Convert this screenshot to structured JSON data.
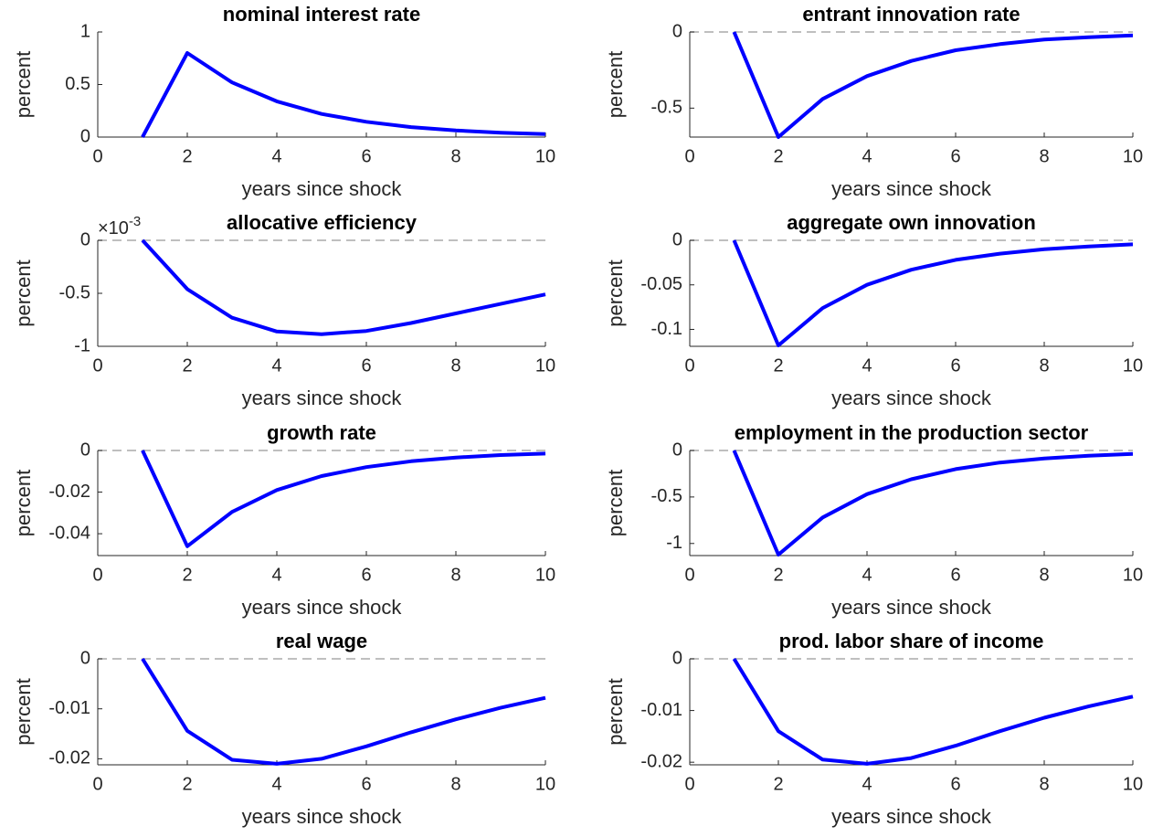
{
  "chart_data": [
    {
      "type": "line",
      "title": "nominal interest rate",
      "xlabel": "years since shock",
      "ylabel": "percent",
      "color": "#0000ff",
      "x": [
        1,
        2,
        3,
        4,
        5,
        6,
        7,
        8,
        9,
        10
      ],
      "values": [
        0,
        0.8,
        0.52,
        0.34,
        0.22,
        0.145,
        0.095,
        0.063,
        0.042,
        0.028
      ],
      "xlim": [
        0,
        10
      ],
      "xticks": [
        0,
        2,
        4,
        6,
        8,
        10
      ],
      "ylim": [
        0,
        1
      ],
      "yticks": [
        0,
        0.5,
        1
      ],
      "zero_line": false
    },
    {
      "type": "line",
      "title": "entrant innovation rate",
      "xlabel": "years since shock",
      "ylabel": "percent",
      "color": "#0000ff",
      "x": [
        1,
        2,
        3,
        4,
        5,
        6,
        7,
        8,
        9,
        10
      ],
      "values": [
        0,
        -0.69,
        -0.44,
        -0.29,
        -0.19,
        -0.12,
        -0.08,
        -0.05,
        -0.035,
        -0.022
      ],
      "xlim": [
        0,
        10
      ],
      "xticks": [
        0,
        2,
        4,
        6,
        8,
        10
      ],
      "ylim": [
        -0.69,
        0
      ],
      "yticks": [
        -0.5,
        0
      ],
      "zero_line": true
    },
    {
      "type": "line",
      "title": "allocative efficiency",
      "xlabel": "years since shock",
      "ylabel": "percent",
      "color": "#0000ff",
      "y_multiplier": {
        "base": "×10",
        "exponent": "-3"
      },
      "x": [
        1,
        2,
        3,
        4,
        5,
        6,
        7,
        8,
        9,
        10
      ],
      "values": [
        0,
        -0.46,
        -0.73,
        -0.86,
        -0.885,
        -0.855,
        -0.78,
        -0.69,
        -0.6,
        -0.51
      ],
      "xlim": [
        0,
        10
      ],
      "xticks": [
        0,
        2,
        4,
        6,
        8,
        10
      ],
      "ylim": [
        -1,
        0
      ],
      "yticks": [
        -1,
        -0.5,
        0
      ],
      "zero_line": true
    },
    {
      "type": "line",
      "title": "aggregate own innovation",
      "xlabel": "years since shock",
      "ylabel": "percent",
      "color": "#0000ff",
      "x": [
        1,
        2,
        3,
        4,
        5,
        6,
        7,
        8,
        9,
        10
      ],
      "values": [
        0,
        -0.118,
        -0.076,
        -0.05,
        -0.033,
        -0.022,
        -0.015,
        -0.01,
        -0.007,
        -0.0045
      ],
      "xlim": [
        0,
        10
      ],
      "xticks": [
        0,
        2,
        4,
        6,
        8,
        10
      ],
      "ylim": [
        -0.119,
        0
      ],
      "yticks": [
        -0.1,
        -0.05,
        0
      ],
      "zero_line": true
    },
    {
      "type": "line",
      "title": "growth rate",
      "xlabel": "years since shock",
      "ylabel": "percent",
      "color": "#0000ff",
      "x": [
        1,
        2,
        3,
        4,
        5,
        6,
        7,
        8,
        9,
        10
      ],
      "values": [
        0,
        -0.046,
        -0.0295,
        -0.019,
        -0.0123,
        -0.008,
        -0.0052,
        -0.0034,
        -0.0022,
        -0.0015
      ],
      "xlim": [
        0,
        10
      ],
      "xticks": [
        0,
        2,
        4,
        6,
        8,
        10
      ],
      "ylim": [
        -0.0505,
        0
      ],
      "yticks": [
        -0.04,
        -0.02,
        0
      ],
      "zero_line": true
    },
    {
      "type": "line",
      "title": "employment in the production sector",
      "xlabel": "years since shock",
      "ylabel": "percent",
      "color": "#0000ff",
      "x": [
        1,
        2,
        3,
        4,
        5,
        6,
        7,
        8,
        9,
        10
      ],
      "values": [
        0,
        -1.12,
        -0.72,
        -0.47,
        -0.31,
        -0.2,
        -0.13,
        -0.085,
        -0.056,
        -0.037
      ],
      "xlim": [
        0,
        10
      ],
      "xticks": [
        0,
        2,
        4,
        6,
        8,
        10
      ],
      "ylim": [
        -1.13,
        0
      ],
      "yticks": [
        -1,
        -0.5,
        0
      ],
      "zero_line": true
    },
    {
      "type": "line",
      "title": "real wage",
      "xlabel": "years since shock",
      "ylabel": "percent",
      "color": "#0000ff",
      "x": [
        1,
        2,
        3,
        4,
        5,
        6,
        7,
        8,
        9,
        10
      ],
      "values": [
        0,
        -0.0144,
        -0.0202,
        -0.021,
        -0.02,
        -0.0175,
        -0.0147,
        -0.0121,
        -0.0098,
        -0.0078
      ],
      "xlim": [
        0,
        10
      ],
      "xticks": [
        0,
        2,
        4,
        6,
        8,
        10
      ],
      "ylim": [
        -0.0212,
        0
      ],
      "yticks": [
        -0.02,
        -0.01,
        0
      ],
      "zero_line": true
    },
    {
      "type": "line",
      "title": "prod. labor share of income",
      "xlabel": "years since shock",
      "ylabel": "percent",
      "color": "#0000ff",
      "x": [
        1,
        2,
        3,
        4,
        5,
        6,
        7,
        8,
        9,
        10
      ],
      "values": [
        0,
        -0.014,
        -0.0195,
        -0.0203,
        -0.0192,
        -0.0168,
        -0.014,
        -0.0114,
        -0.0092,
        -0.0073
      ],
      "xlim": [
        0,
        10
      ],
      "xticks": [
        0,
        2,
        4,
        6,
        8,
        10
      ],
      "ylim": [
        -0.0205,
        0
      ],
      "yticks": [
        -0.02,
        -0.01,
        0
      ],
      "zero_line": true
    }
  ]
}
